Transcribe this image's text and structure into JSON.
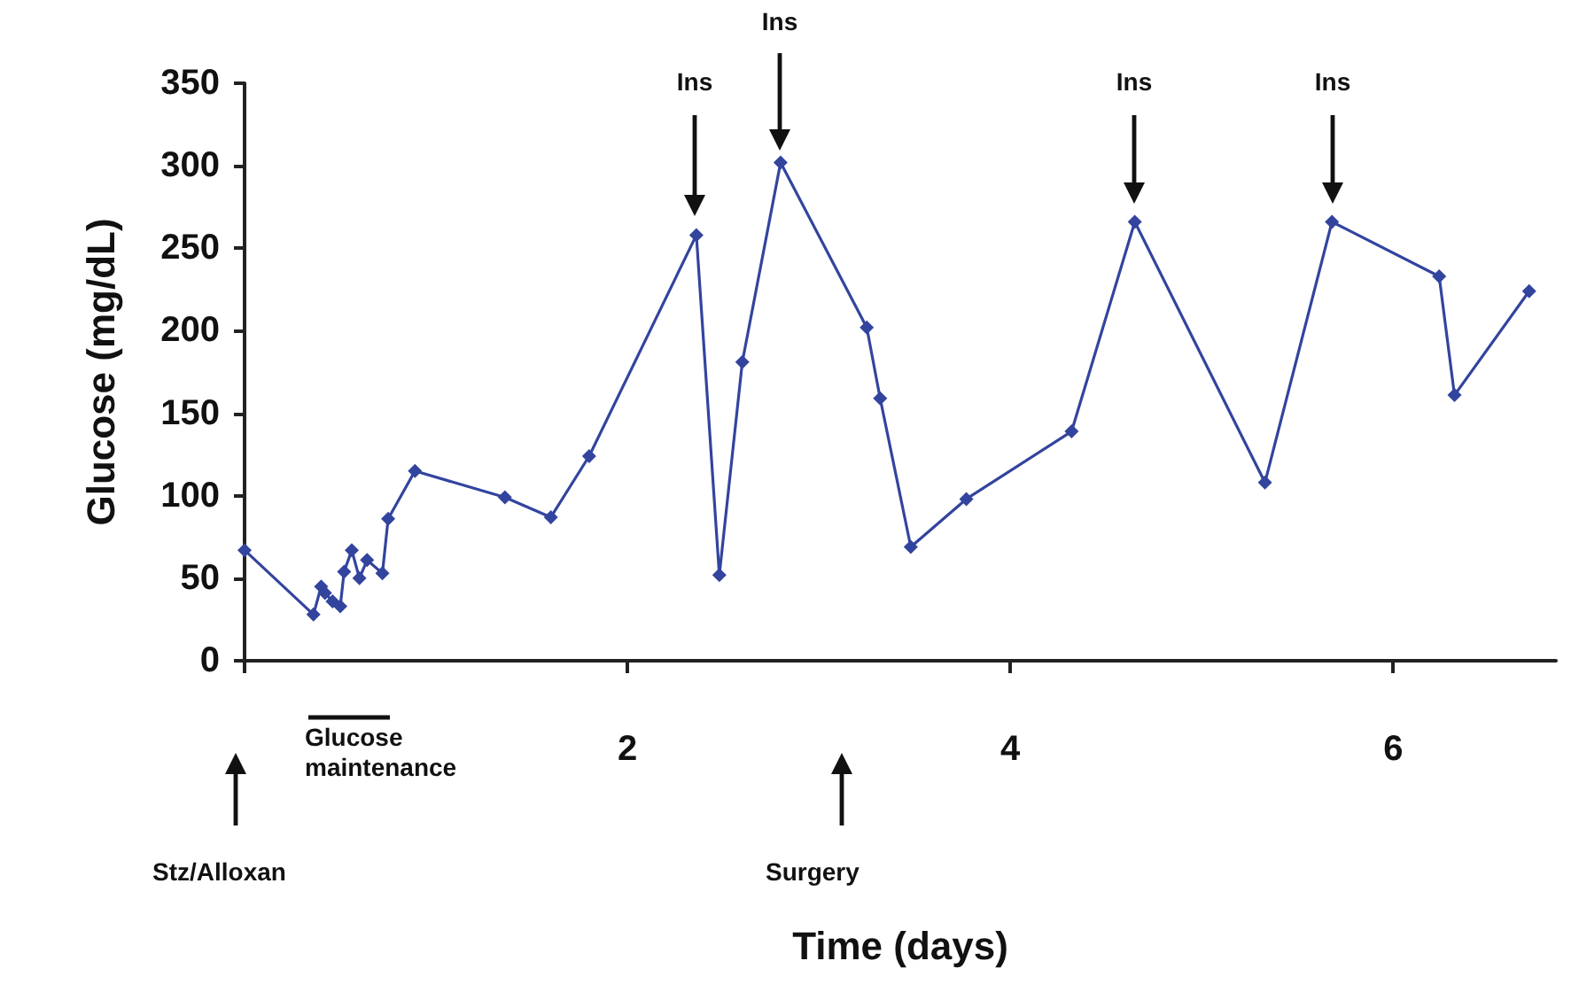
{
  "chart_data": {
    "type": "line",
    "xlabel": "Time (days)",
    "ylabel": "Glucose (mg/dL)",
    "x": [
      0,
      0.36,
      0.4,
      0.42,
      0.46,
      0.5,
      0.52,
      0.56,
      0.6,
      0.64,
      0.72,
      0.75,
      0.89,
      1.36,
      1.6,
      1.8,
      2.36,
      2.48,
      2.6,
      2.8,
      3.25,
      3.32,
      3.48,
      3.77,
      4.32,
      4.65,
      5.33,
      5.68,
      6.24,
      6.32,
      6.71
    ],
    "series": [
      {
        "color": "#33449e",
        "values": [
          67,
          28,
          45,
          41,
          36,
          33,
          54,
          67,
          50,
          61,
          53,
          86,
          115,
          99,
          87,
          124,
          258,
          52,
          181,
          302,
          202,
          159,
          69,
          98,
          139,
          266,
          108,
          266,
          233,
          161,
          224
        ]
      }
    ],
    "xlim": [
      0,
      6.85
    ],
    "xticks": [
      {
        "value": 0,
        "label": null
      },
      2,
      4,
      6
    ],
    "ylim": [
      0,
      350
    ],
    "yticks": [
      0,
      50,
      100,
      150,
      200,
      250,
      300,
      350
    ],
    "marker": "diamond",
    "line_style": "solid",
    "annotations": [
      "Ins",
      "Ins",
      "Ins",
      "Ins",
      "Stz/Alloxan",
      "Glucose maintenance",
      "Surgery"
    ]
  }
}
